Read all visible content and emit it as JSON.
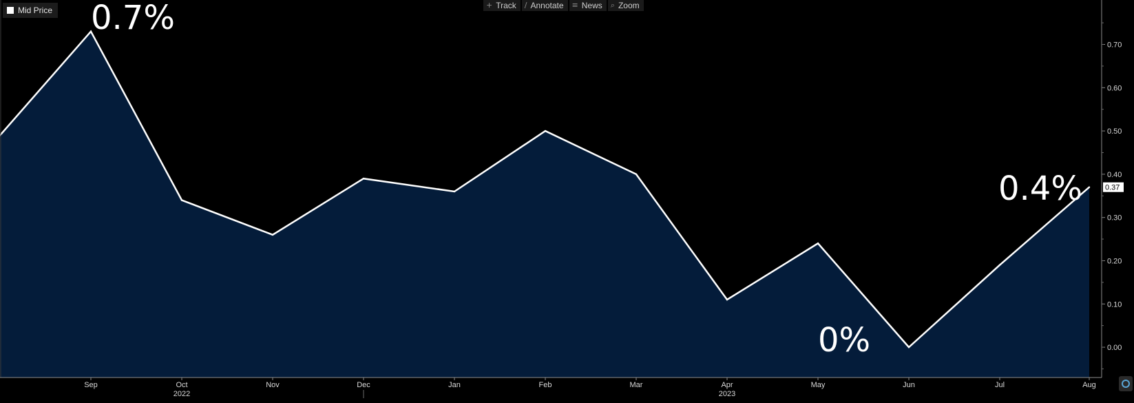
{
  "legend": {
    "label": "Mid Price",
    "color": "#ffffff"
  },
  "toolbar": [
    {
      "label": "Track",
      "icon": "crosshair-icon",
      "glyph": "+"
    },
    {
      "label": "Annotate",
      "icon": "pencil-icon",
      "glyph": "∕"
    },
    {
      "label": "News",
      "icon": "list-icon",
      "glyph": "≡"
    },
    {
      "label": "Zoom",
      "icon": "magnifier-icon",
      "glyph": "⌕"
    }
  ],
  "colors": {
    "background": "#000000",
    "area_fill": "#041c3a",
    "line": "#ffffff",
    "axis_text": "#d9d9d9"
  },
  "chart_data": {
    "type": "area",
    "x": [
      "Aug",
      "Sep",
      "Oct",
      "Nov",
      "Dec",
      "Jan",
      "Feb",
      "Mar",
      "Apr",
      "May",
      "Jun",
      "Jul",
      "Aug"
    ],
    "x_tick_labels": [
      "Sep",
      "Oct",
      "Nov",
      "Dec",
      "Jan",
      "Feb",
      "Mar",
      "Apr",
      "May",
      "Jun",
      "Jul",
      "Aug"
    ],
    "year_labels": [
      {
        "after": "Oct",
        "label": "2022"
      },
      {
        "after": "Apr",
        "label": "2023"
      }
    ],
    "series": [
      {
        "name": "Mid Price",
        "values": [
          0.49,
          0.73,
          0.34,
          0.26,
          0.39,
          0.36,
          0.5,
          0.4,
          0.11,
          0.24,
          0.0,
          0.19,
          0.37
        ]
      }
    ],
    "ylim": [
      -0.07,
      0.79
    ],
    "y_ticks": [
      "0.00",
      "0.10",
      "0.20",
      "0.30",
      "0.40",
      "0.50",
      "0.60",
      "0.70"
    ],
    "last_value_label": "0.37",
    "annotations": [
      {
        "text": "0.7%",
        "at": "Sep"
      },
      {
        "text": "0%",
        "at": "May"
      },
      {
        "text": "0.4%",
        "at": "Jul"
      }
    ],
    "title": "",
    "xlabel": "",
    "ylabel": "",
    "grid": false
  }
}
